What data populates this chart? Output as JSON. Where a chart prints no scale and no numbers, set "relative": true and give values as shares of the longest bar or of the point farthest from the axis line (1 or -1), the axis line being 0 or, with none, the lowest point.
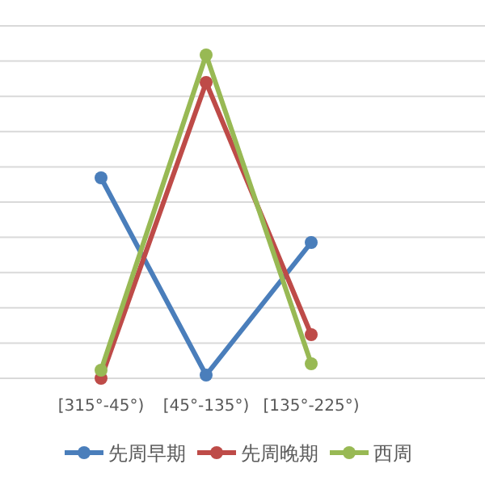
{
  "chart_data": {
    "type": "line",
    "relative": true,
    "categories": [
      "[315°-45°)",
      "[45°-135°)",
      "[135°-225°)",
      null
    ],
    "series": [
      {
        "name": "先周早期",
        "color": "#4a7ebb",
        "values": [
          0.62,
          0.01,
          0.42,
          null
        ]
      },
      {
        "name": "先周晚期",
        "color": "#be4b48",
        "values": [
          0.0,
          0.915,
          0.135,
          null
        ]
      },
      {
        "name": "西周",
        "color": "#98b954",
        "values": [
          0.025,
          1.0,
          0.045,
          null
        ]
      }
    ],
    "marker": "circle",
    "grid": "y",
    "legend": "bottom"
  }
}
